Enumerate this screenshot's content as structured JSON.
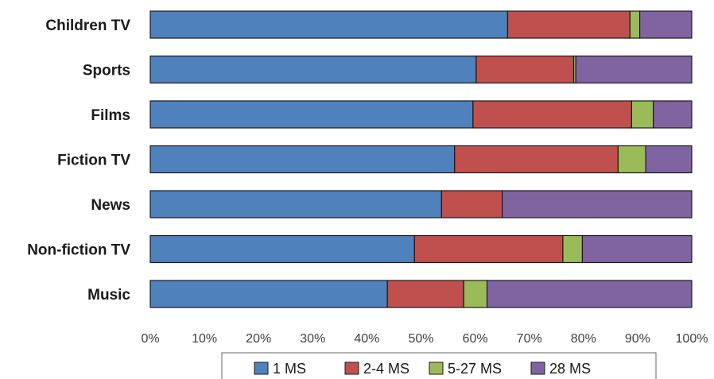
{
  "chart_data": {
    "type": "bar",
    "orientation": "horizontal",
    "stacked": true,
    "categories": [
      "Children TV",
      "Sports",
      "Films",
      "Fiction TV",
      "News",
      "Non-fiction TV",
      "Music"
    ],
    "series": [
      {
        "name": "1 MS",
        "color": "#4f81bd",
        "values": [
          66,
          60.2,
          59.6,
          56.2,
          53.8,
          48.8,
          43.8
        ]
      },
      {
        "name": "2-4 MS",
        "color": "#c0504d",
        "values": [
          22.6,
          18,
          29.3,
          30.2,
          11.2,
          27.4,
          14.1
        ]
      },
      {
        "name": "5-27 MS",
        "color": "#9bbb59",
        "values": [
          1.8,
          0.4,
          4,
          5.1,
          0,
          3.6,
          4.3
        ]
      },
      {
        "name": "28 MS",
        "color": "#8064a2",
        "values": [
          9.6,
          21.4,
          7.1,
          8.5,
          35,
          20.2,
          37.8
        ]
      }
    ],
    "xlim": [
      0,
      100
    ],
    "x_ticks": [
      "0%",
      "10%",
      "20%",
      "30%",
      "40%",
      "50%",
      "60%",
      "70%",
      "80%",
      "90%",
      "100%"
    ],
    "title": "",
    "xlabel": "",
    "ylabel": "",
    "grid": false,
    "legend": {
      "position": "bottom",
      "entries": [
        "1 MS",
        "2-4 MS",
        "5-27 MS",
        "28 MS"
      ]
    }
  }
}
